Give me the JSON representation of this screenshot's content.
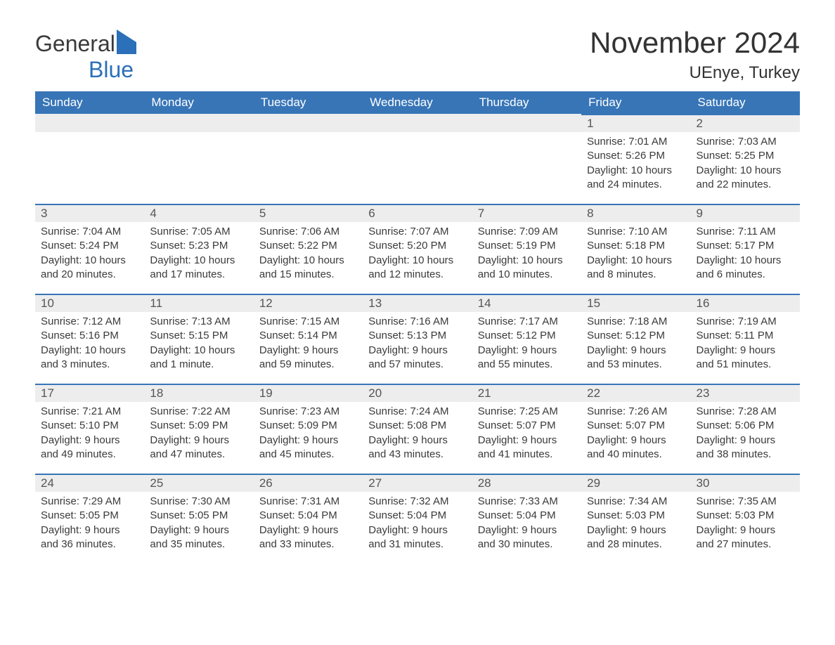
{
  "logo": {
    "part1": "General",
    "part2": "Blue"
  },
  "title": "November 2024",
  "location": "UEnye, Turkey",
  "weekdays": [
    "Sunday",
    "Monday",
    "Tuesday",
    "Wednesday",
    "Thursday",
    "Friday",
    "Saturday"
  ],
  "colors": {
    "header_bg": "#3775b7",
    "day_rule": "#3775b7",
    "day_row_bg": "#ededed",
    "logo_accent": "#2b70b8"
  },
  "weeks": [
    [
      null,
      null,
      null,
      null,
      null,
      {
        "n": "1",
        "sunrise": "Sunrise: 7:01 AM",
        "sunset": "Sunset: 5:26 PM",
        "day1": "Daylight: 10 hours",
        "day2": "and 24 minutes."
      },
      {
        "n": "2",
        "sunrise": "Sunrise: 7:03 AM",
        "sunset": "Sunset: 5:25 PM",
        "day1": "Daylight: 10 hours",
        "day2": "and 22 minutes."
      }
    ],
    [
      {
        "n": "3",
        "sunrise": "Sunrise: 7:04 AM",
        "sunset": "Sunset: 5:24 PM",
        "day1": "Daylight: 10 hours",
        "day2": "and 20 minutes."
      },
      {
        "n": "4",
        "sunrise": "Sunrise: 7:05 AM",
        "sunset": "Sunset: 5:23 PM",
        "day1": "Daylight: 10 hours",
        "day2": "and 17 minutes."
      },
      {
        "n": "5",
        "sunrise": "Sunrise: 7:06 AM",
        "sunset": "Sunset: 5:22 PM",
        "day1": "Daylight: 10 hours",
        "day2": "and 15 minutes."
      },
      {
        "n": "6",
        "sunrise": "Sunrise: 7:07 AM",
        "sunset": "Sunset: 5:20 PM",
        "day1": "Daylight: 10 hours",
        "day2": "and 12 minutes."
      },
      {
        "n": "7",
        "sunrise": "Sunrise: 7:09 AM",
        "sunset": "Sunset: 5:19 PM",
        "day1": "Daylight: 10 hours",
        "day2": "and 10 minutes."
      },
      {
        "n": "8",
        "sunrise": "Sunrise: 7:10 AM",
        "sunset": "Sunset: 5:18 PM",
        "day1": "Daylight: 10 hours",
        "day2": "and 8 minutes."
      },
      {
        "n": "9",
        "sunrise": "Sunrise: 7:11 AM",
        "sunset": "Sunset: 5:17 PM",
        "day1": "Daylight: 10 hours",
        "day2": "and 6 minutes."
      }
    ],
    [
      {
        "n": "10",
        "sunrise": "Sunrise: 7:12 AM",
        "sunset": "Sunset: 5:16 PM",
        "day1": "Daylight: 10 hours",
        "day2": "and 3 minutes."
      },
      {
        "n": "11",
        "sunrise": "Sunrise: 7:13 AM",
        "sunset": "Sunset: 5:15 PM",
        "day1": "Daylight: 10 hours",
        "day2": "and 1 minute."
      },
      {
        "n": "12",
        "sunrise": "Sunrise: 7:15 AM",
        "sunset": "Sunset: 5:14 PM",
        "day1": "Daylight: 9 hours",
        "day2": "and 59 minutes."
      },
      {
        "n": "13",
        "sunrise": "Sunrise: 7:16 AM",
        "sunset": "Sunset: 5:13 PM",
        "day1": "Daylight: 9 hours",
        "day2": "and 57 minutes."
      },
      {
        "n": "14",
        "sunrise": "Sunrise: 7:17 AM",
        "sunset": "Sunset: 5:12 PM",
        "day1": "Daylight: 9 hours",
        "day2": "and 55 minutes."
      },
      {
        "n": "15",
        "sunrise": "Sunrise: 7:18 AM",
        "sunset": "Sunset: 5:12 PM",
        "day1": "Daylight: 9 hours",
        "day2": "and 53 minutes."
      },
      {
        "n": "16",
        "sunrise": "Sunrise: 7:19 AM",
        "sunset": "Sunset: 5:11 PM",
        "day1": "Daylight: 9 hours",
        "day2": "and 51 minutes."
      }
    ],
    [
      {
        "n": "17",
        "sunrise": "Sunrise: 7:21 AM",
        "sunset": "Sunset: 5:10 PM",
        "day1": "Daylight: 9 hours",
        "day2": "and 49 minutes."
      },
      {
        "n": "18",
        "sunrise": "Sunrise: 7:22 AM",
        "sunset": "Sunset: 5:09 PM",
        "day1": "Daylight: 9 hours",
        "day2": "and 47 minutes."
      },
      {
        "n": "19",
        "sunrise": "Sunrise: 7:23 AM",
        "sunset": "Sunset: 5:09 PM",
        "day1": "Daylight: 9 hours",
        "day2": "and 45 minutes."
      },
      {
        "n": "20",
        "sunrise": "Sunrise: 7:24 AM",
        "sunset": "Sunset: 5:08 PM",
        "day1": "Daylight: 9 hours",
        "day2": "and 43 minutes."
      },
      {
        "n": "21",
        "sunrise": "Sunrise: 7:25 AM",
        "sunset": "Sunset: 5:07 PM",
        "day1": "Daylight: 9 hours",
        "day2": "and 41 minutes."
      },
      {
        "n": "22",
        "sunrise": "Sunrise: 7:26 AM",
        "sunset": "Sunset: 5:07 PM",
        "day1": "Daylight: 9 hours",
        "day2": "and 40 minutes."
      },
      {
        "n": "23",
        "sunrise": "Sunrise: 7:28 AM",
        "sunset": "Sunset: 5:06 PM",
        "day1": "Daylight: 9 hours",
        "day2": "and 38 minutes."
      }
    ],
    [
      {
        "n": "24",
        "sunrise": "Sunrise: 7:29 AM",
        "sunset": "Sunset: 5:05 PM",
        "day1": "Daylight: 9 hours",
        "day2": "and 36 minutes."
      },
      {
        "n": "25",
        "sunrise": "Sunrise: 7:30 AM",
        "sunset": "Sunset: 5:05 PM",
        "day1": "Daylight: 9 hours",
        "day2": "and 35 minutes."
      },
      {
        "n": "26",
        "sunrise": "Sunrise: 7:31 AM",
        "sunset": "Sunset: 5:04 PM",
        "day1": "Daylight: 9 hours",
        "day2": "and 33 minutes."
      },
      {
        "n": "27",
        "sunrise": "Sunrise: 7:32 AM",
        "sunset": "Sunset: 5:04 PM",
        "day1": "Daylight: 9 hours",
        "day2": "and 31 minutes."
      },
      {
        "n": "28",
        "sunrise": "Sunrise: 7:33 AM",
        "sunset": "Sunset: 5:04 PM",
        "day1": "Daylight: 9 hours",
        "day2": "and 30 minutes."
      },
      {
        "n": "29",
        "sunrise": "Sunrise: 7:34 AM",
        "sunset": "Sunset: 5:03 PM",
        "day1": "Daylight: 9 hours",
        "day2": "and 28 minutes."
      },
      {
        "n": "30",
        "sunrise": "Sunrise: 7:35 AM",
        "sunset": "Sunset: 5:03 PM",
        "day1": "Daylight: 9 hours",
        "day2": "and 27 minutes."
      }
    ]
  ]
}
